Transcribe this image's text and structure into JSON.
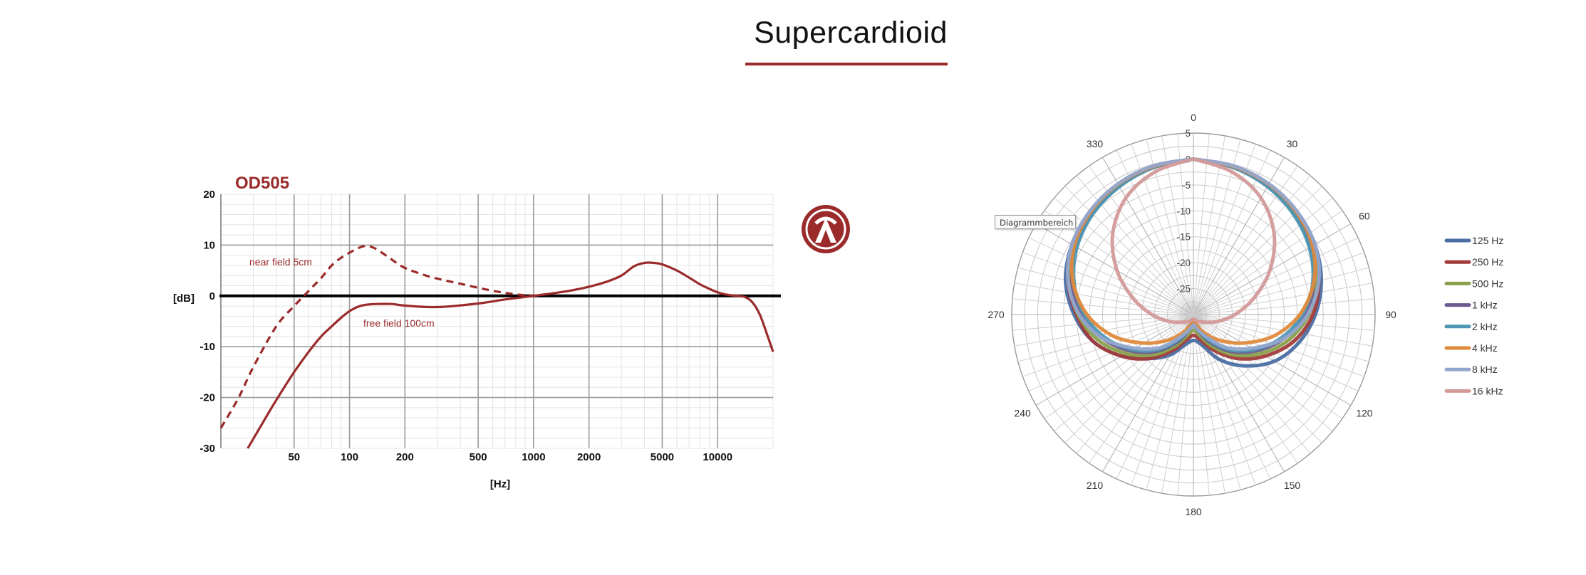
{
  "page": {
    "title": "Supercardioid",
    "accent_color": "#9b2a2a"
  },
  "tooltip": {
    "text": "Diagrammbereich"
  },
  "chart_data": [
    {
      "type": "line",
      "title": "OD505",
      "xlabel": "[Hz]",
      "ylabel": "[dB]",
      "x_scale": "log",
      "xlim": [
        20,
        20000
      ],
      "ylim": [
        -30,
        20
      ],
      "x_ticks": [
        50,
        100,
        200,
        500,
        1000,
        2000,
        5000,
        10000
      ],
      "x_tick_labels": [
        "50",
        "100",
        "200",
        "500",
        "1000",
        "2000",
        "5000",
        "10000"
      ],
      "y_ticks": [
        20,
        10,
        0,
        -10,
        -20,
        -30
      ],
      "y_tick_labels": [
        "20",
        "10",
        "0",
        "-10",
        "-20",
        "-30"
      ],
      "grid": true,
      "reference_line": 0,
      "series": [
        {
          "name": "near field 5cm",
          "style": "dashed",
          "color": "#9b2a2a",
          "points": [
            [
              20,
              -26
            ],
            [
              25,
              -20
            ],
            [
              30,
              -14
            ],
            [
              40,
              -6
            ],
            [
              50,
              -2
            ],
            [
              60,
              1
            ],
            [
              70,
              3.5
            ],
            [
              80,
              6
            ],
            [
              90,
              7.5
            ],
            [
              100,
              8.5
            ],
            [
              110,
              9.3
            ],
            [
              120,
              9.8
            ],
            [
              130,
              9.7
            ],
            [
              140,
              9.2
            ],
            [
              160,
              7.8
            ],
            [
              180,
              6.5
            ],
            [
              200,
              5.5
            ],
            [
              250,
              4.2
            ],
            [
              300,
              3.4
            ],
            [
              400,
              2.4
            ],
            [
              500,
              1.6
            ],
            [
              600,
              1
            ],
            [
              700,
              0.6
            ],
            [
              800,
              0.3
            ],
            [
              1000,
              0
            ]
          ]
        },
        {
          "name": "free field 100cm",
          "style": "solid",
          "color": "#9b2a2a",
          "points": [
            [
              28,
              -30
            ],
            [
              35,
              -24
            ],
            [
              40,
              -20.5
            ],
            [
              50,
              -15
            ],
            [
              60,
              -11
            ],
            [
              70,
              -8
            ],
            [
              80,
              -6
            ],
            [
              90,
              -4.3
            ],
            [
              100,
              -3
            ],
            [
              110,
              -2.2
            ],
            [
              120,
              -1.8
            ],
            [
              140,
              -1.6
            ],
            [
              170,
              -1.6
            ],
            [
              200,
              -1.9
            ],
            [
              300,
              -2.2
            ],
            [
              500,
              -1.5
            ],
            [
              700,
              -0.7
            ],
            [
              1000,
              0
            ],
            [
              1500,
              0.9
            ],
            [
              2000,
              1.8
            ],
            [
              2500,
              2.8
            ],
            [
              3000,
              4
            ],
            [
              3500,
              5.8
            ],
            [
              4000,
              6.5
            ],
            [
              4500,
              6.5
            ],
            [
              5000,
              6.2
            ],
            [
              6000,
              5
            ],
            [
              7000,
              3.6
            ],
            [
              8000,
              2.3
            ],
            [
              9000,
              1.4
            ],
            [
              10000,
              0.7
            ],
            [
              11000,
              0.3
            ],
            [
              12000,
              0.1
            ],
            [
              13000,
              0
            ],
            [
              14000,
              -0.2
            ],
            [
              15000,
              -0.8
            ],
            [
              16000,
              -2
            ],
            [
              17000,
              -3.8
            ],
            [
              18000,
              -6.2
            ],
            [
              20000,
              -11
            ]
          ]
        }
      ],
      "annotations": [
        "near field 5cm",
        "free field 100cm"
      ]
    },
    {
      "type": "polar",
      "angle_ticks": [
        0,
        30,
        60,
        90,
        120,
        150,
        180,
        210,
        240,
        270,
        300,
        330
      ],
      "angle_tick_labels": [
        "0",
        "30",
        "60",
        "90",
        "120",
        "150",
        "180",
        "210",
        "240",
        "270",
        "",
        "330"
      ],
      "radial_ticks": [
        5,
        0,
        -5,
        -10,
        -15,
        -20,
        -25
      ],
      "radial_tick_labels": [
        "5",
        "0",
        "-5",
        "-10",
        "-15",
        "-20",
        "-25"
      ],
      "rlim": [
        -30,
        5
      ],
      "grid": true,
      "legend_position": "right",
      "series": [
        {
          "name": "125 Hz",
          "color": "#4a6ea3",
          "angles": [
            0,
            15,
            30,
            45,
            60,
            75,
            90,
            105,
            120,
            135,
            150,
            165,
            180,
            195,
            210,
            225,
            240,
            255,
            270,
            285,
            300,
            315,
            330,
            345,
            360
          ],
          "values": [
            0,
            -0.5,
            -1.2,
            -2,
            -3,
            -4.5,
            -6.5,
            -9,
            -12,
            -16,
            -20,
            -24,
            -25,
            -24,
            -21,
            -18,
            -14,
            -10,
            -7,
            -4.5,
            -3,
            -2,
            -1.2,
            -0.5,
            0
          ]
        },
        {
          "name": "250 Hz",
          "color": "#a13c3a",
          "angles": [
            0,
            15,
            30,
            45,
            60,
            75,
            90,
            105,
            120,
            135,
            150,
            165,
            180,
            195,
            210,
            225,
            240,
            255,
            270,
            285,
            300,
            315,
            330,
            345,
            360
          ],
          "values": [
            0,
            -0.6,
            -1.3,
            -2.3,
            -3.5,
            -5,
            -7,
            -10,
            -14,
            -18,
            -22,
            -25,
            -26,
            -25,
            -22,
            -18,
            -14,
            -10,
            -7.5,
            -5,
            -3.3,
            -2.2,
            -1.3,
            -0.6,
            0
          ]
        },
        {
          "name": "500 Hz",
          "color": "#8aa04a",
          "angles": [
            0,
            15,
            30,
            45,
            60,
            75,
            90,
            105,
            120,
            135,
            150,
            165,
            180,
            195,
            210,
            225,
            240,
            255,
            270,
            285,
            300,
            315,
            330,
            345,
            360
          ],
          "values": [
            0,
            -0.5,
            -1.3,
            -2.4,
            -3.8,
            -5.5,
            -7.8,
            -11,
            -15,
            -19,
            -23,
            -26,
            -27,
            -26,
            -23,
            -19,
            -15,
            -11,
            -7.8,
            -5.2,
            -3.5,
            -2.3,
            -1.3,
            -0.5,
            0
          ]
        },
        {
          "name": "1 kHz",
          "color": "#6a5a8e",
          "angles": [
            0,
            15,
            30,
            45,
            60,
            75,
            90,
            105,
            120,
            135,
            150,
            165,
            180,
            195,
            210,
            225,
            240,
            255,
            270,
            285,
            300,
            315,
            330,
            345,
            360
          ],
          "values": [
            0,
            -0.5,
            -1.4,
            -2.5,
            -4,
            -6,
            -8.5,
            -12,
            -16,
            -20,
            -24,
            -27,
            -28,
            -27,
            -24,
            -20,
            -16,
            -12,
            -8.5,
            -5.8,
            -3.8,
            -2.4,
            -1.4,
            -0.5,
            0
          ]
        },
        {
          "name": "2 kHz",
          "color": "#4f97b3",
          "angles": [
            0,
            15,
            30,
            45,
            60,
            75,
            90,
            105,
            120,
            135,
            150,
            165,
            180,
            195,
            210,
            225,
            240,
            255,
            270,
            285,
            300,
            315,
            330,
            345,
            360
          ],
          "values": [
            0,
            -0.6,
            -1.5,
            -2.7,
            -4.2,
            -6.2,
            -9,
            -12.5,
            -16.5,
            -20.5,
            -24.5,
            -27.5,
            -28.5,
            -27.5,
            -24.5,
            -20.5,
            -16.5,
            -12.5,
            -9,
            -6.2,
            -4.1,
            -2.6,
            -1.5,
            -0.6,
            0
          ]
        },
        {
          "name": "4 kHz",
          "color": "#e08a3c",
          "angles": [
            0,
            15,
            30,
            45,
            60,
            75,
            90,
            105,
            120,
            135,
            150,
            165,
            180,
            195,
            210,
            225,
            240,
            255,
            270,
            285,
            300,
            315,
            330,
            345,
            360
          ],
          "values": [
            0,
            -0.4,
            -1,
            -2,
            -3.5,
            -6,
            -9.5,
            -14,
            -19,
            -23,
            -26,
            -28,
            -29,
            -28,
            -26,
            -23,
            -19,
            -14,
            -9.5,
            -6,
            -3.5,
            -2,
            -1,
            -0.4,
            0
          ]
        },
        {
          "name": "8 kHz",
          "color": "#93a7cd",
          "angles": [
            0,
            15,
            30,
            45,
            60,
            75,
            90,
            105,
            120,
            135,
            150,
            165,
            180,
            195,
            210,
            225,
            240,
            255,
            270,
            285,
            300,
            315,
            330,
            345,
            360
          ],
          "values": [
            0,
            -0.3,
            -0.9,
            -1.8,
            -3,
            -5,
            -8,
            -12,
            -17,
            -21,
            -25,
            -27,
            -28,
            -27,
            -25,
            -21,
            -17,
            -12,
            -8,
            -5,
            -3,
            -1.8,
            -0.9,
            -0.3,
            0
          ]
        },
        {
          "name": "16 kHz",
          "color": "#d39a9a",
          "angles": [
            0,
            15,
            30,
            45,
            60,
            75,
            90,
            105,
            120,
            135,
            150,
            165,
            180,
            195,
            210,
            225,
            240,
            255,
            270,
            285,
            300,
            315,
            330,
            345,
            360
          ],
          "values": [
            0,
            -1.5,
            -4,
            -8,
            -13,
            -18,
            -22,
            -25,
            -27,
            -28,
            -28.5,
            -29,
            -29,
            -29,
            -28.5,
            -28,
            -27,
            -25,
            -22,
            -18,
            -13,
            -8,
            -4,
            -1.5,
            0
          ]
        }
      ]
    }
  ]
}
